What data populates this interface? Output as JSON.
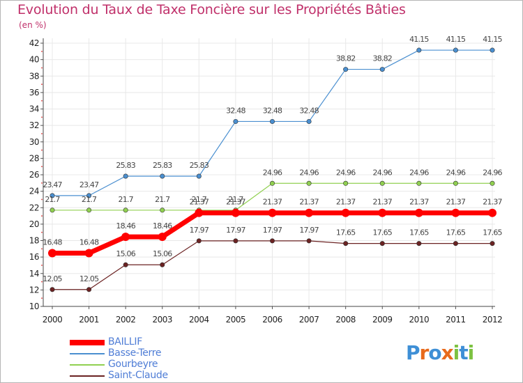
{
  "header": {
    "title": "Evolution du Taux de Taxe Foncière sur les Propriétés Bâties",
    "unit": "(en %)"
  },
  "chart_data": {
    "type": "line",
    "title": "Evolution du Taux de Taxe Foncière sur les Propriétés Bâties",
    "ylabel": "(en %)",
    "xlabel": "",
    "ylim": [
      10,
      42
    ],
    "yticks": [
      10,
      12,
      14,
      16,
      18,
      20,
      22,
      24,
      26,
      28,
      30,
      32,
      34,
      36,
      38,
      40,
      42
    ],
    "categories": [
      "2000",
      "2001",
      "2002",
      "2003",
      "2004",
      "2005",
      "2006",
      "2007",
      "2008",
      "2009",
      "2010",
      "2011",
      "2012"
    ],
    "grid": true,
    "legend_position": "bottom-left",
    "series": [
      {
        "name": "BAILLIF",
        "color": "#ff0000",
        "values": [
          16.48,
          16.48,
          18.46,
          18.46,
          21.37,
          21.37,
          21.37,
          21.37,
          21.37,
          21.37,
          21.37,
          21.37,
          21.37
        ],
        "labels": [
          "16.48",
          "16.48",
          "18.46",
          "18.46",
          "21.37",
          "21.37",
          "21.37",
          "21.37",
          "21.37",
          "21.37",
          "21.37",
          "21.37",
          "21.37"
        ]
      },
      {
        "name": "Basse-Terre",
        "color": "#4a8fd0",
        "values": [
          23.47,
          23.47,
          25.83,
          25.83,
          25.83,
          32.48,
          32.48,
          32.48,
          38.82,
          38.82,
          41.15,
          41.15,
          41.15
        ],
        "labels": [
          "23.47",
          "23.47",
          "25.83",
          "25.83",
          "25.83",
          "32.48",
          "32.48",
          "32.48",
          "38.82",
          "38.82",
          "41.15",
          "41.15",
          "41.15"
        ]
      },
      {
        "name": "Gourbeyre",
        "color": "#90d050",
        "values": [
          21.7,
          21.7,
          21.7,
          21.7,
          21.7,
          21.7,
          24.96,
          24.96,
          24.96,
          24.96,
          24.96,
          24.96,
          24.96
        ],
        "labels": [
          "21.7",
          "21.7",
          "21.7",
          "21.7",
          "21.7",
          "21.7",
          "24.96",
          "24.96",
          "24.96",
          "24.96",
          "24.96",
          "24.96",
          "24.96"
        ]
      },
      {
        "name": "Saint-Claude",
        "color": "#6b2222",
        "values": [
          12.05,
          12.05,
          15.06,
          15.06,
          17.97,
          17.97,
          17.97,
          17.97,
          17.65,
          17.65,
          17.65,
          17.65,
          17.65
        ],
        "labels": [
          "12.05",
          "12.05",
          "15.06",
          "15.06",
          "17.97",
          "17.97",
          "17.97",
          "17.97",
          "17.65",
          "17.65",
          "17.65",
          "17.65",
          "17.65"
        ]
      }
    ]
  },
  "logo": {
    "text": "Proxiti",
    "letters": [
      "P",
      "r",
      "o",
      "x",
      "i",
      "t",
      "i"
    ],
    "colors": [
      "#3e8fd6",
      "#e86a1c",
      "#3e8fd6",
      "#e86a1c",
      "#7dc242",
      "#3e8fd6",
      "#7dc242"
    ]
  }
}
